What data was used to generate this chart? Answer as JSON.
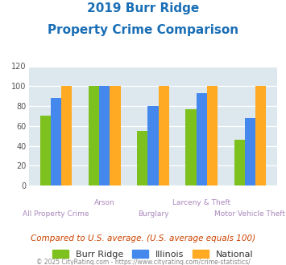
{
  "title_line1": "2019 Burr Ridge",
  "title_line2": "Property Crime Comparison",
  "title_color": "#1a6eb5",
  "categories": [
    "All Property Crime",
    "Arson",
    "Burglary",
    "Larceny & Theft",
    "Motor Vehicle Theft"
  ],
  "x_label_top": [
    "",
    "Arson",
    "",
    "Larceny & Theft",
    ""
  ],
  "x_label_bottom": [
    "All Property Crime",
    "",
    "Burglary",
    "",
    "Motor Vehicle Theft"
  ],
  "burr_ridge": [
    70,
    100,
    55,
    77,
    46
  ],
  "illinois": [
    88,
    100,
    80,
    93,
    68
  ],
  "national": [
    100,
    100,
    100,
    100,
    100
  ],
  "burr_ridge_color": "#7dc11e",
  "illinois_color": "#4488ee",
  "national_color": "#ffaa22",
  "ylim": [
    0,
    120
  ],
  "yticks": [
    0,
    20,
    40,
    60,
    80,
    100,
    120
  ],
  "bg_color": "#dce8ee",
  "grid_color": "#ffffff",
  "note": "Compared to U.S. average. (U.S. average equals 100)",
  "note_color": "#cc4400",
  "footer": "© 2025 CityRating.com - https://www.cityrating.com/crime-statistics/",
  "footer_color": "#888888",
  "legend_labels": [
    "Burr Ridge",
    "Illinois",
    "National"
  ],
  "xlabel_color": "#aa88bb"
}
